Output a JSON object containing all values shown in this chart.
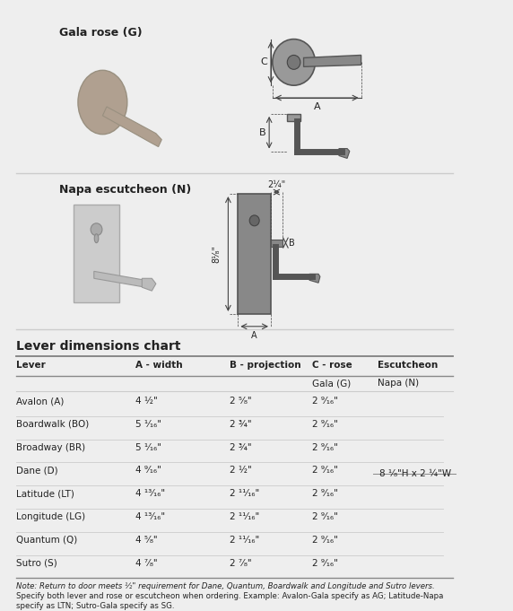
{
  "bg_color": "#eeeeee",
  "title_section_color": "#e8e8e8",
  "table_title": "Lever dimensions chart",
  "col_headers": [
    "Lever",
    "A - width",
    "B - projection",
    "C - rose",
    "Escutcheon"
  ],
  "sub_headers": [
    "",
    "",
    "",
    "Gala (G)",
    "Napa (N)"
  ],
  "rows": [
    [
      "Avalon (A)",
      "4 ½\"",
      "2 ⁵⁄₈\"",
      "2 ⁹⁄₁₆\"",
      ""
    ],
    [
      "Boardwalk (BO)",
      "5 ¹⁄₁₆\"",
      "2 ¾\"",
      "2 ⁹⁄₁₆\"",
      ""
    ],
    [
      "Broadway (BR)",
      "5 ¹⁄₁₆\"",
      "2 ¾\"",
      "2 ⁹⁄₁₆\"",
      ""
    ],
    [
      "Dane (D)",
      "4 ⁹⁄₁₆\"",
      "2 ½\"",
      "2 ⁹⁄₁₆\"",
      ""
    ],
    [
      "Latitude (LT)",
      "4 ¹³⁄₁₆\"",
      "2 ¹¹⁄₁₆\"",
      "2 ⁹⁄₁₆\"",
      ""
    ],
    [
      "Longitude (LG)",
      "4 ¹³⁄₁₆\"",
      "2 ¹¹⁄₁₆\"",
      "2 ⁹⁄₁₆\"",
      ""
    ],
    [
      "Quantum (Q)",
      "4 ⁵⁄₈\"",
      "2 ¹¹⁄₁₆\"",
      "2 ⁹⁄₁₆\"",
      ""
    ],
    [
      "Sutro (S)",
      "4 ⁷⁄₈\"",
      "2 ⁷⁄₈\"",
      "2 ⁹⁄₁₆\"",
      ""
    ]
  ],
  "escutcheon_label": "8 ¹⁄₈\"H x 2 ¼\"W",
  "gala_label": "Gala rose (G)",
  "napa_label": "Napa escutcheon (N)",
  "dim_gala_C": "C",
  "dim_gala_A": "A",
  "dim_gala_B": "B",
  "dim_napa_width": "2¼\"",
  "dim_napa_height": "8¹⁄₈\"",
  "dim_napa_B": "B",
  "dim_napa_A": "A",
  "note_text": "Note: Return to door meets ½\" requirement for Dane, Quantum, Boardwalk and Longitude and Sutro levers.\n        Specify both lever and rose or escutcheon when ordering. Example: Avalon-Gala specify as AG; Latitude-Napa\n        specify as LTN; Sutro-Gala specify as SG.",
  "text_color": "#222222",
  "line_color": "#bbbbbb",
  "header_line_color": "#555555",
  "diagram_color": "#888888",
  "diagram_dark": "#666666"
}
